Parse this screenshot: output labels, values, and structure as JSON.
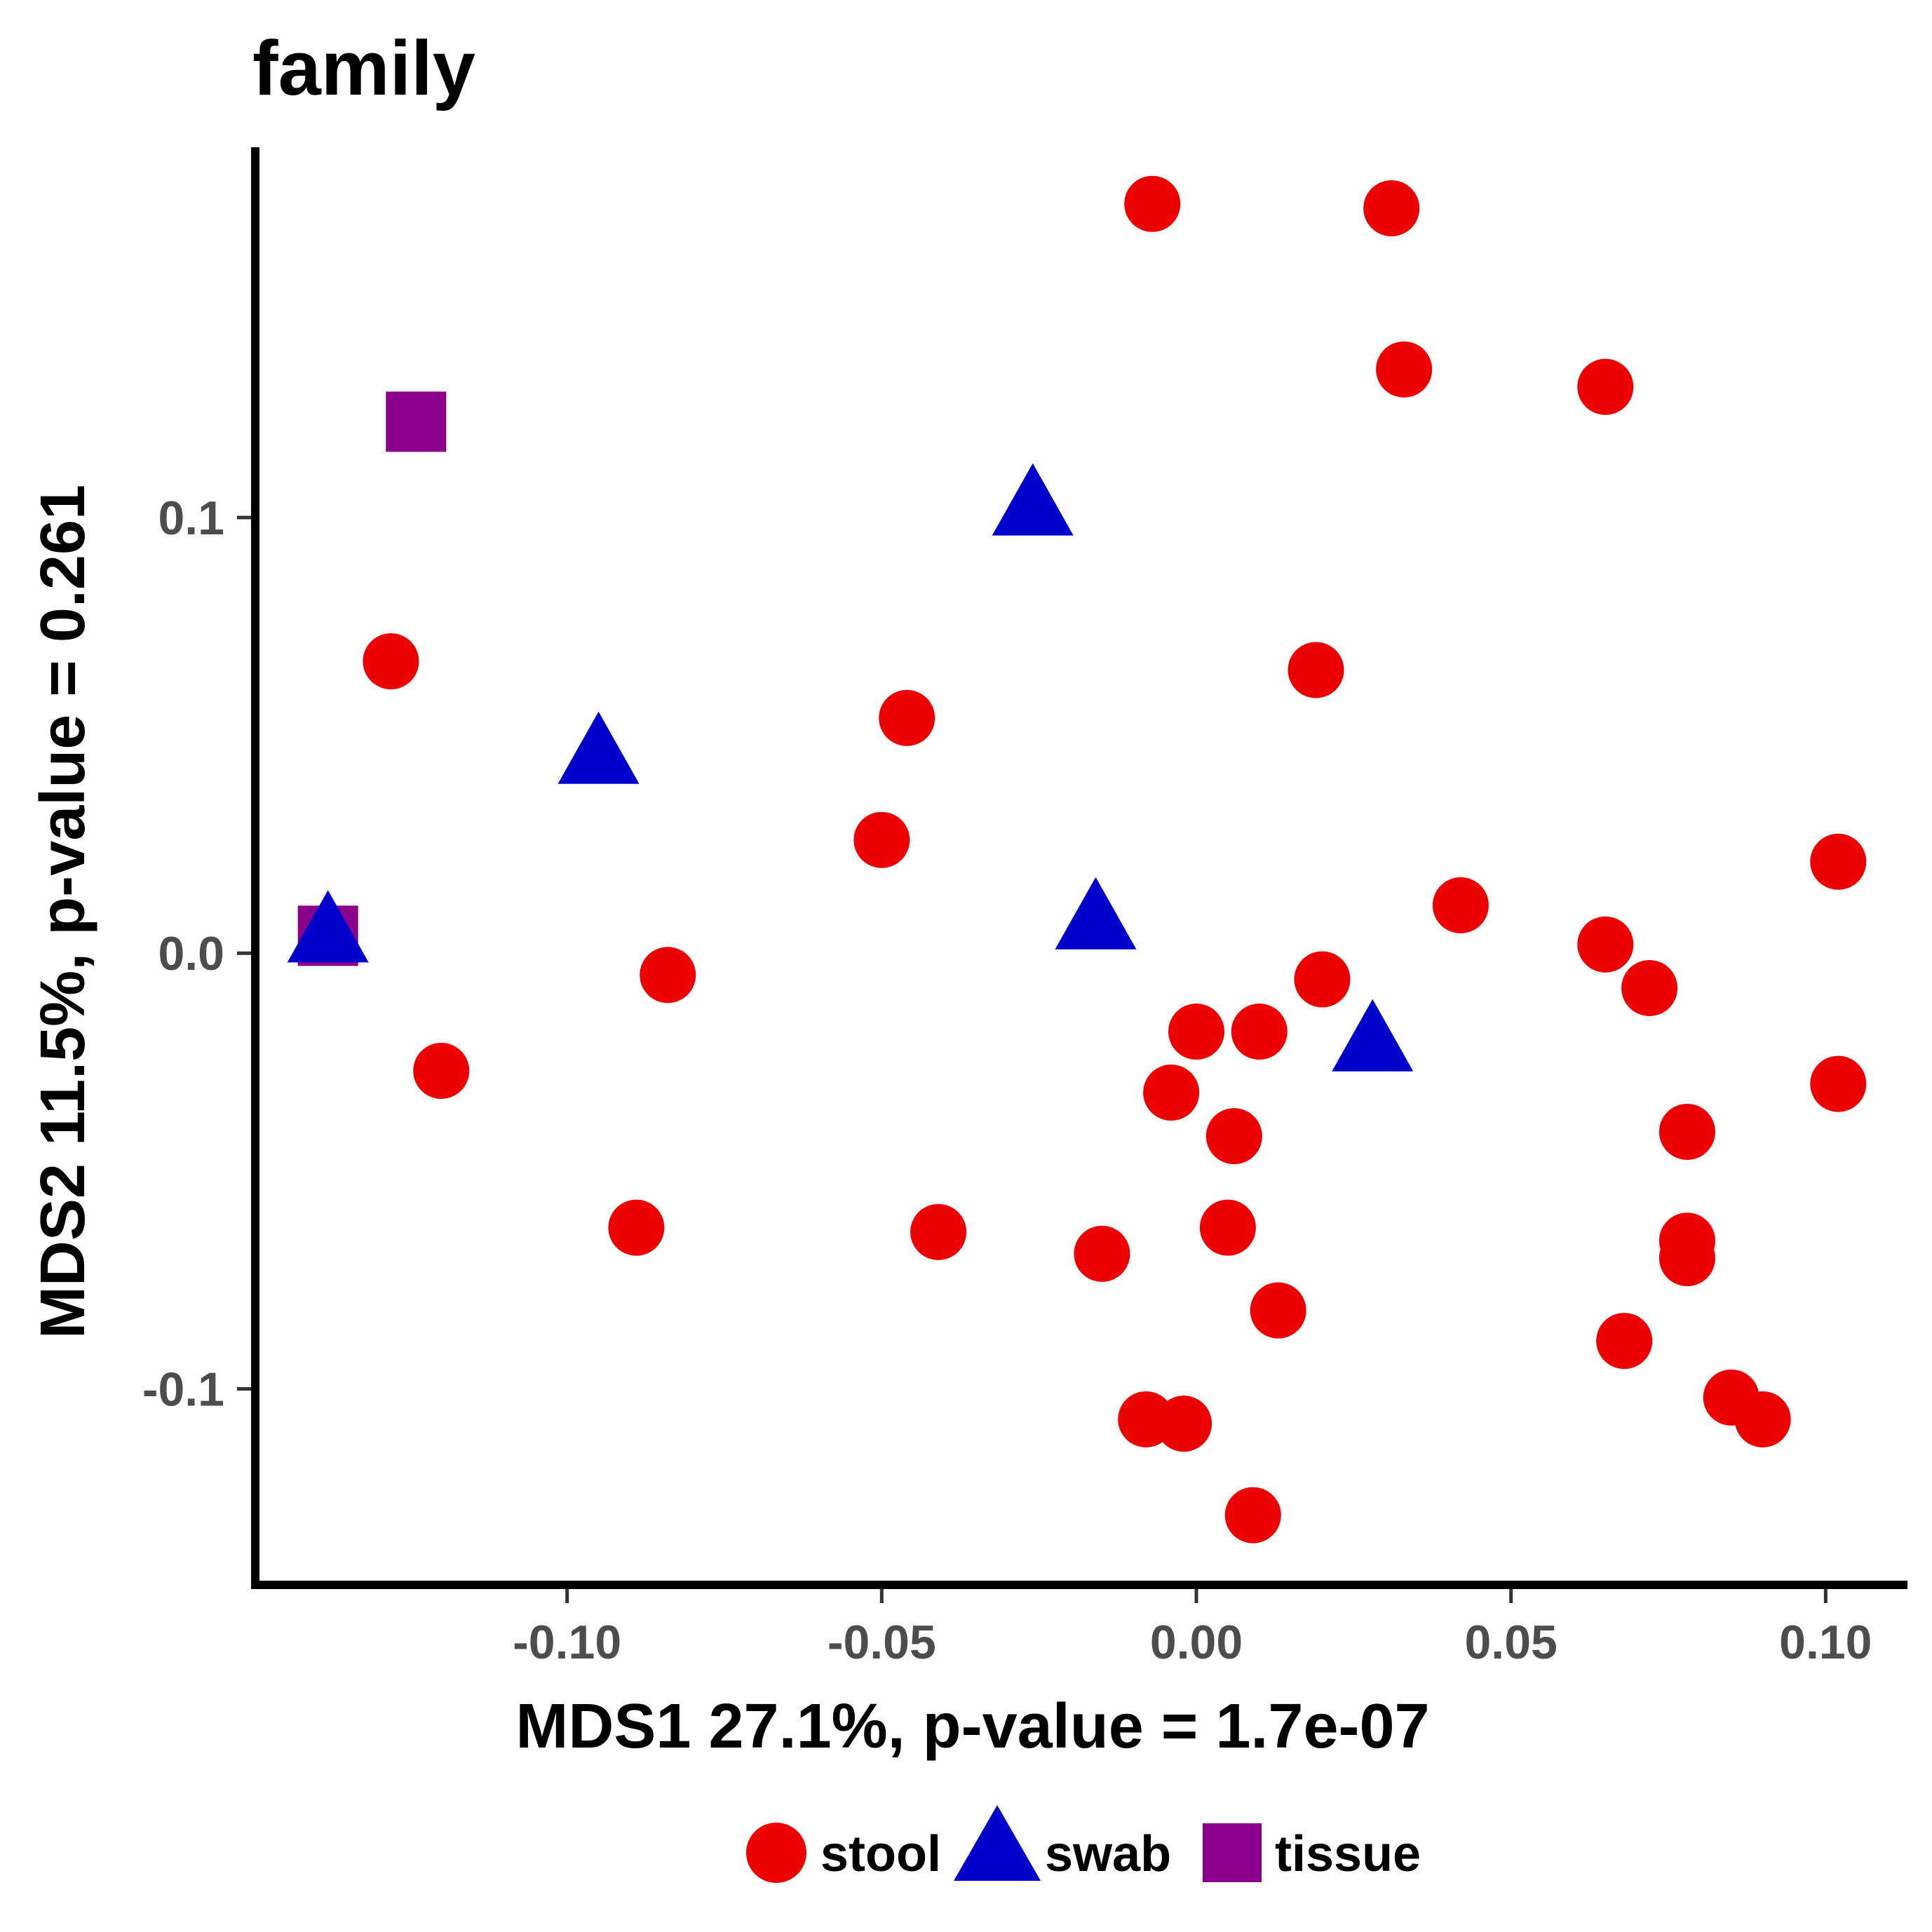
{
  "chart_data": {
    "type": "scatter",
    "title": "family",
    "xlabel": "MDS1 27.1%, p-value = 1.7e-07",
    "ylabel": "MDS2 11.5%, p-value = 0.261",
    "xlim": [
      -0.15,
      0.113
    ],
    "ylim": [
      -0.145,
      0.185
    ],
    "x_ticks": [
      -0.1,
      -0.05,
      0.0,
      0.05,
      0.1
    ],
    "x_tick_labels": [
      "-0.10",
      "-0.05",
      "0.00",
      "0.05",
      "0.10"
    ],
    "y_ticks": [
      0.1,
      0.0,
      -0.1
    ],
    "y_tick_labels": [
      "0.1",
      "0.0",
      "-0.1"
    ],
    "grid": false,
    "legend_position": "bottom",
    "series": [
      {
        "name": "stool",
        "shape": "circle",
        "color": "#ee0000",
        "points": [
          {
            "x": -0.007,
            "y": 0.172
          },
          {
            "x": 0.031,
            "y": 0.171
          },
          {
            "x": 0.033,
            "y": 0.134
          },
          {
            "x": 0.065,
            "y": 0.13
          },
          {
            "x": -0.128,
            "y": 0.067
          },
          {
            "x": 0.019,
            "y": 0.065
          },
          {
            "x": -0.046,
            "y": 0.054
          },
          {
            "x": -0.05,
            "y": 0.026
          },
          {
            "x": 0.102,
            "y": 0.021
          },
          {
            "x": 0.042,
            "y": 0.011
          },
          {
            "x": 0.065,
            "y": 0.002
          },
          {
            "x": -0.084,
            "y": -0.005
          },
          {
            "x": 0.02,
            "y": -0.006
          },
          {
            "x": 0.072,
            "y": -0.008
          },
          {
            "x": 0.0,
            "y": -0.018
          },
          {
            "x": 0.01,
            "y": -0.018
          },
          {
            "x": -0.12,
            "y": -0.027
          },
          {
            "x": -0.004,
            "y": -0.032
          },
          {
            "x": 0.102,
            "y": -0.03
          },
          {
            "x": 0.006,
            "y": -0.042
          },
          {
            "x": 0.078,
            "y": -0.041
          },
          {
            "x": -0.089,
            "y": -0.063
          },
          {
            "x": -0.041,
            "y": -0.064
          },
          {
            "x": 0.005,
            "y": -0.063
          },
          {
            "x": -0.015,
            "y": -0.069
          },
          {
            "x": 0.078,
            "y": -0.066
          },
          {
            "x": 0.078,
            "y": -0.07
          },
          {
            "x": 0.013,
            "y": -0.082
          },
          {
            "x": 0.068,
            "y": -0.089
          },
          {
            "x": 0.085,
            "y": -0.102
          },
          {
            "x": 0.09,
            "y": -0.107
          },
          {
            "x": -0.008,
            "y": -0.107
          },
          {
            "x": -0.002,
            "y": -0.108
          },
          {
            "x": 0.009,
            "y": -0.129
          }
        ]
      },
      {
        "name": "swab",
        "shape": "triangle",
        "color": "#0000cd",
        "points": [
          {
            "x": -0.026,
            "y": 0.102
          },
          {
            "x": -0.095,
            "y": 0.045
          },
          {
            "x": -0.016,
            "y": 0.007
          },
          {
            "x": -0.138,
            "y": 0.004
          },
          {
            "x": 0.028,
            "y": -0.021
          }
        ]
      },
      {
        "name": "tissue",
        "shape": "square",
        "color": "#8b008b",
        "points": [
          {
            "x": -0.124,
            "y": 0.122
          },
          {
            "x": -0.138,
            "y": 0.004
          }
        ]
      }
    ]
  }
}
